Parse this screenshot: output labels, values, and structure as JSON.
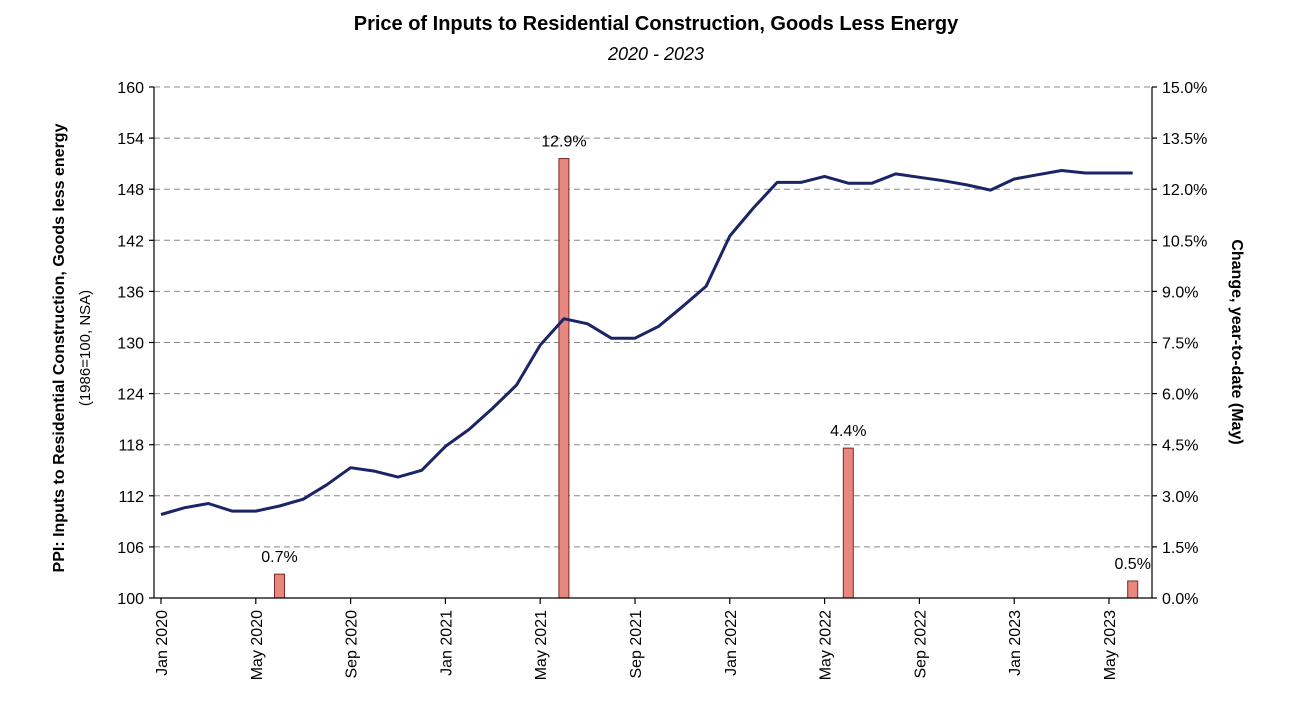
{
  "chart_data": {
    "type": "line+bar",
    "title": "Price of Inputs to Residential Construction, Goods Less Energy",
    "subtitle": "2020 - 2023",
    "y_left": {
      "label": "PPI: Inputs to Residential Construction, Goods less energy",
      "sublabel": "(1986=100, NSA)",
      "range": [
        100,
        160
      ],
      "ticks": [
        "100",
        "106",
        "112",
        "118",
        "124",
        "130",
        "136",
        "142",
        "148",
        "154",
        "160"
      ]
    },
    "y_right": {
      "label": "Change, year-to-date (May)",
      "range": [
        0,
        15
      ],
      "ticks": [
        "0.0%",
        "1.5%",
        "3.0%",
        "4.5%",
        "6.0%",
        "7.5%",
        "9.0%",
        "10.5%",
        "12.0%",
        "13.5%",
        "15.0%"
      ]
    },
    "x_ticks": [
      "Jan 2020",
      "May 2020",
      "Sep 2020",
      "Jan 2021",
      "May 2021",
      "Sep 2021",
      "Jan 2022",
      "May 2022",
      "Sep 2022",
      "Jan 2023",
      "May 2023"
    ],
    "line_series": {
      "color": "#1a2466",
      "start": "Jan 2020",
      "values": [
        109.8,
        110.6,
        111.1,
        110.2,
        110.2,
        110.8,
        111.6,
        113.3,
        115.3,
        114.9,
        114.2,
        115.0,
        117.8,
        119.8,
        122.3,
        125.0,
        129.7,
        132.8,
        132.2,
        130.5,
        130.5,
        131.9,
        134.2,
        136.6,
        142.5,
        145.8,
        148.8,
        148.8,
        149.5,
        148.7,
        148.7,
        149.8,
        149.4,
        149.0,
        148.5,
        147.9,
        149.2,
        149.7,
        150.2,
        149.9,
        149.9,
        149.9
      ]
    },
    "bar_series": {
      "color": "#e8877f",
      "points": [
        {
          "x": "Jun 2020",
          "value": 0.7,
          "label": "0.7%"
        },
        {
          "x": "Jun 2021",
          "value": 12.9,
          "label": "12.9%"
        },
        {
          "x": "Jun 2022",
          "value": 4.4,
          "label": "4.4%"
        },
        {
          "x": "Jun 2023",
          "value": 0.5,
          "label": "0.5%"
        }
      ]
    },
    "grid": true
  }
}
